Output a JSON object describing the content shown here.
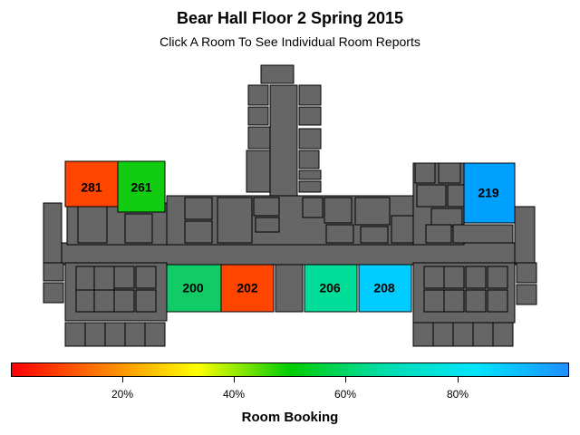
{
  "title": "Bear Hall Floor 2 Spring 2015",
  "subtitle": "Click A Room To See Individual Room Reports",
  "legend": {
    "title": "Room Booking",
    "ticks": [
      "20%",
      "40%",
      "60%",
      "80%"
    ],
    "colors": [
      "#ff0000",
      "#ff7f00",
      "#ffff00",
      "#00cc00",
      "#00ddaa",
      "#00e5ff",
      "#1e90ff"
    ]
  },
  "colors": {
    "building": "#666666",
    "outline": "#000000"
  },
  "rooms": [
    {
      "id": "281",
      "label": "281",
      "booking": 0.04,
      "color": "#ff4500"
    },
    {
      "id": "261",
      "label": "261",
      "booking": 0.62,
      "color": "#11cc11"
    },
    {
      "id": "219",
      "label": "219",
      "booking": 0.97,
      "color": "#00a0ff"
    },
    {
      "id": "200",
      "label": "200",
      "booking": 0.66,
      "color": "#11cc66"
    },
    {
      "id": "202",
      "label": "202",
      "booking": 0.04,
      "color": "#ff4500"
    },
    {
      "id": "206",
      "label": "206",
      "booking": 0.71,
      "color": "#00dd99"
    },
    {
      "id": "208",
      "label": "208",
      "booking": 0.85,
      "color": "#00ccff"
    }
  ]
}
